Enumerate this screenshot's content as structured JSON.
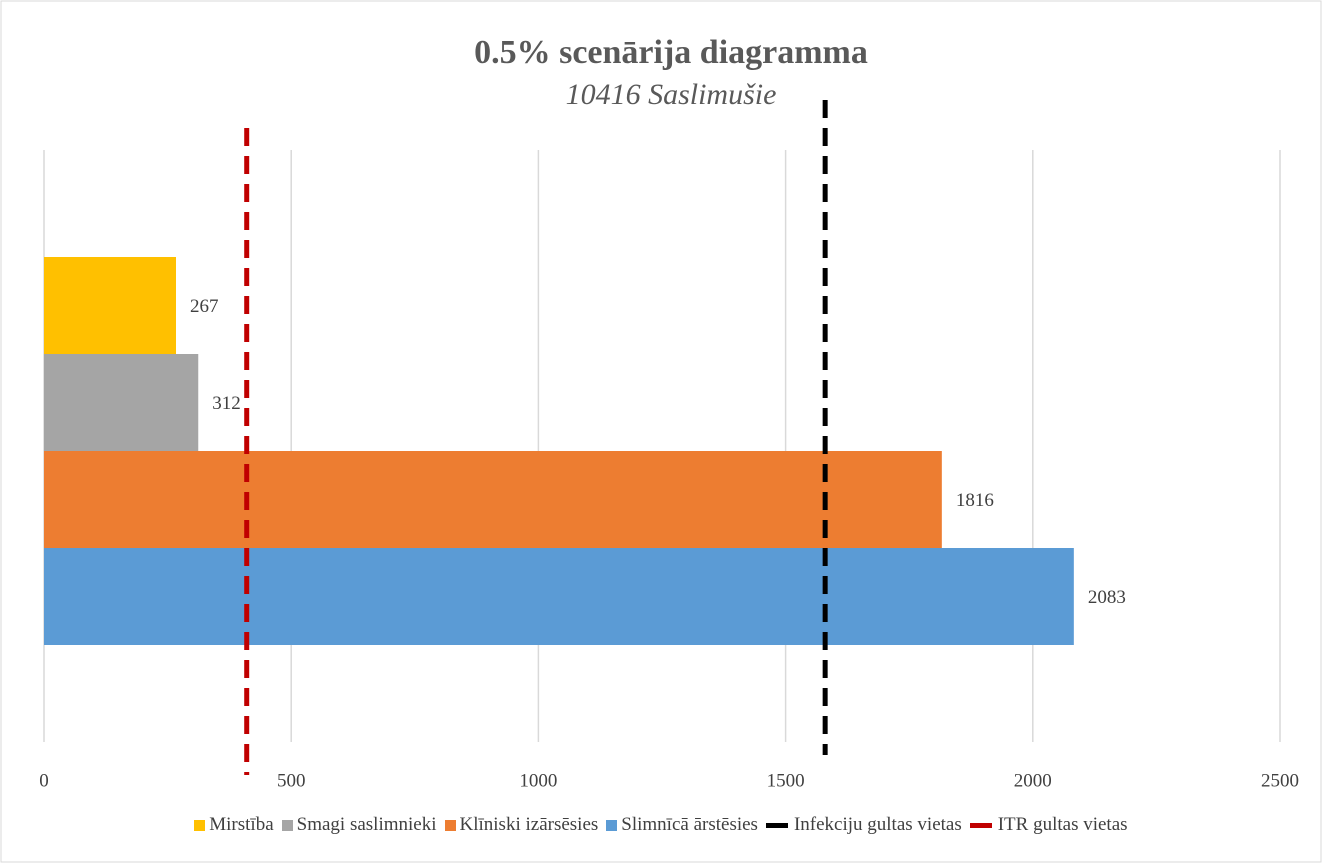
{
  "chart_data": {
    "type": "bar",
    "orientation": "horizontal",
    "title": "0.5% scenārija diagramma",
    "subtitle": "10416 Saslimušie",
    "categories": [
      null
    ],
    "series": [
      {
        "name": "Mirstība",
        "color": "#ffc000",
        "values": [
          267
        ]
      },
      {
        "name": "Smagi saslimnieki",
        "color": "#a5a5a5",
        "values": [
          312
        ]
      },
      {
        "name": "Klīniski izārsēsies",
        "color": "#ed7d31",
        "values": [
          1816
        ]
      },
      {
        "name": "Slimnīcā ārstēsies",
        "color": "#5b9bd5",
        "values": [
          2083
        ]
      }
    ],
    "reference_lines": [
      {
        "name": "Infekciju gultas vietas",
        "color": "#000000",
        "value": 1580
      },
      {
        "name": "ITR gultas vietas",
        "color": "#c00000",
        "value": 410
      }
    ],
    "xlim": [
      0,
      2500
    ],
    "xticks": [
      0,
      500,
      1000,
      1500,
      2000,
      2500
    ],
    "grid": true,
    "legend": "bottom"
  }
}
